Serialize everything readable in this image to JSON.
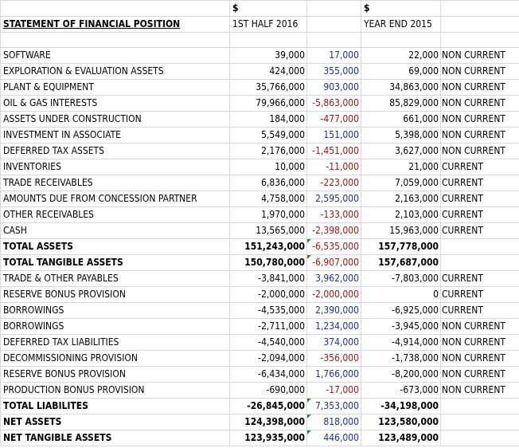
{
  "header": {
    "currency_1": "$",
    "currency_2": "$",
    "title": "STATEMENT OF FINANCIAL POSITION",
    "col_half": "1ST HALF 2016",
    "col_year": "YEAR END 2015"
  },
  "colors": {
    "positive_change": "#1f2f99",
    "negative_change": "#a31515",
    "flag": "#2e8b3a"
  },
  "rows": [
    {
      "label": "SOFTWARE",
      "half": "39,000",
      "change": "17,000",
      "year": "22,000",
      "class": "NON CURRENT"
    },
    {
      "label": "EXPLORATION & EVALUATION ASSETS",
      "half": "424,000",
      "change": "355,000",
      "year": "69,000",
      "class": "NON CURRENT"
    },
    {
      "label": "PLANT & EQUIPMENT",
      "half": "35,766,000",
      "change": "903,000",
      "year": "34,863,000",
      "class": "NON CURRENT"
    },
    {
      "label": "OIL & GAS INTERESTS",
      "half": "79,966,000",
      "change": "-5,863,000",
      "year": "85,829,000",
      "class": "NON CURRENT"
    },
    {
      "label": "ASSETS UNDER CONSTRUCTION",
      "half": "184,000",
      "change": "-477,000",
      "year": "661,000",
      "class": "NON CURRENT"
    },
    {
      "label": "INVESTMENT IN ASSOCIATE",
      "half": "5,549,000",
      "change": "151,000",
      "year": "5,398,000",
      "class": "NON CURRENT"
    },
    {
      "label": "DEFERRED TAX ASSETS",
      "half": "2,176,000",
      "change": "-1,451,000",
      "year": "3,627,000",
      "class": "NON CURRENT"
    },
    {
      "label": "INVENTORIES",
      "half": "10,000",
      "change": "-11,000",
      "year": "21,000",
      "class": "CURRENT"
    },
    {
      "label": "TRADE RECEIVABLES",
      "half": "6,836,000",
      "change": "-223,000",
      "year": "7,059,000",
      "class": "CURRENT"
    },
    {
      "label": "AMOUNTS DUE FROM CONCESSION PARTNER",
      "half": "4,758,000",
      "change": "2,595,000",
      "year": "2,163,000",
      "class": "CURRENT"
    },
    {
      "label": "OTHER RECEIVABLES",
      "half": "1,970,000",
      "change": "-133,000",
      "year": "2,103,000",
      "class": "CURRENT"
    },
    {
      "label": "CASH",
      "half": "13,565,000",
      "change": "-2,398,000",
      "year": "15,963,000",
      "class": "CURRENT"
    },
    {
      "label": "TOTAL ASSETS",
      "half": "151,243,000",
      "change": "-6,535,000",
      "year": "157,778,000",
      "class": "",
      "bold": true,
      "flag": true
    },
    {
      "label": "TOTAL TANGIBLE ASSETS",
      "half": "150,780,000",
      "change": "-6,907,000",
      "year": "157,687,000",
      "class": "",
      "bold": true,
      "flag": true
    },
    {
      "label": "TRADE & OTHER PAYABLES",
      "half": "-3,841,000",
      "change": "3,962,000",
      "year": "-7,803,000",
      "class": "CURRENT"
    },
    {
      "label": "RESERVE BONUS PROVISION",
      "half": "-2,000,000",
      "change": "-2,000,000",
      "year": "0",
      "class": "CURRENT"
    },
    {
      "label": "BORROWINGS",
      "half": "-4,535,000",
      "change": "2,390,000",
      "year": "-6,925,000",
      "class": "CURRENT"
    },
    {
      "label": "BORROWINGS",
      "half": "-2,711,000",
      "change": "1,234,000",
      "year": "-3,945,000",
      "class": "NON CURRENT"
    },
    {
      "label": "DEFERRED TAX LIABILITIES",
      "half": "-4,540,000",
      "change": "374,000",
      "year": "-4,914,000",
      "class": "NON CURRENT"
    },
    {
      "label": "DECOMMISSIONING PROVISION",
      "half": "-2,094,000",
      "change": "-356,000",
      "year": "-1,738,000",
      "class": "NON CURRENT"
    },
    {
      "label": "RESERVE BONUS PROVISION",
      "half": "-6,434,000",
      "change": "1,766,000",
      "year": "-8,200,000",
      "class": "NON CURRENT"
    },
    {
      "label": "PRODUCTION BONUS PROVISION",
      "half": "-690,000",
      "change": "-17,000",
      "year": "-673,000",
      "class": "NON CURRENT"
    },
    {
      "label": "TOTAL LIABILITES",
      "half": "-26,845,000",
      "change": "7,353,000",
      "year": "-34,198,000",
      "class": "",
      "bold": true,
      "flag": true
    },
    {
      "label": "NET ASSETS",
      "half": "124,398,000",
      "change": "818,000",
      "year": "123,580,000",
      "class": "",
      "bold": true,
      "flag": true
    },
    {
      "label": "NET TANGIBLE ASSETS",
      "half": "123,935,000",
      "change": "446,000",
      "year": "123,489,000",
      "class": "",
      "bold": true,
      "flag": true
    }
  ]
}
